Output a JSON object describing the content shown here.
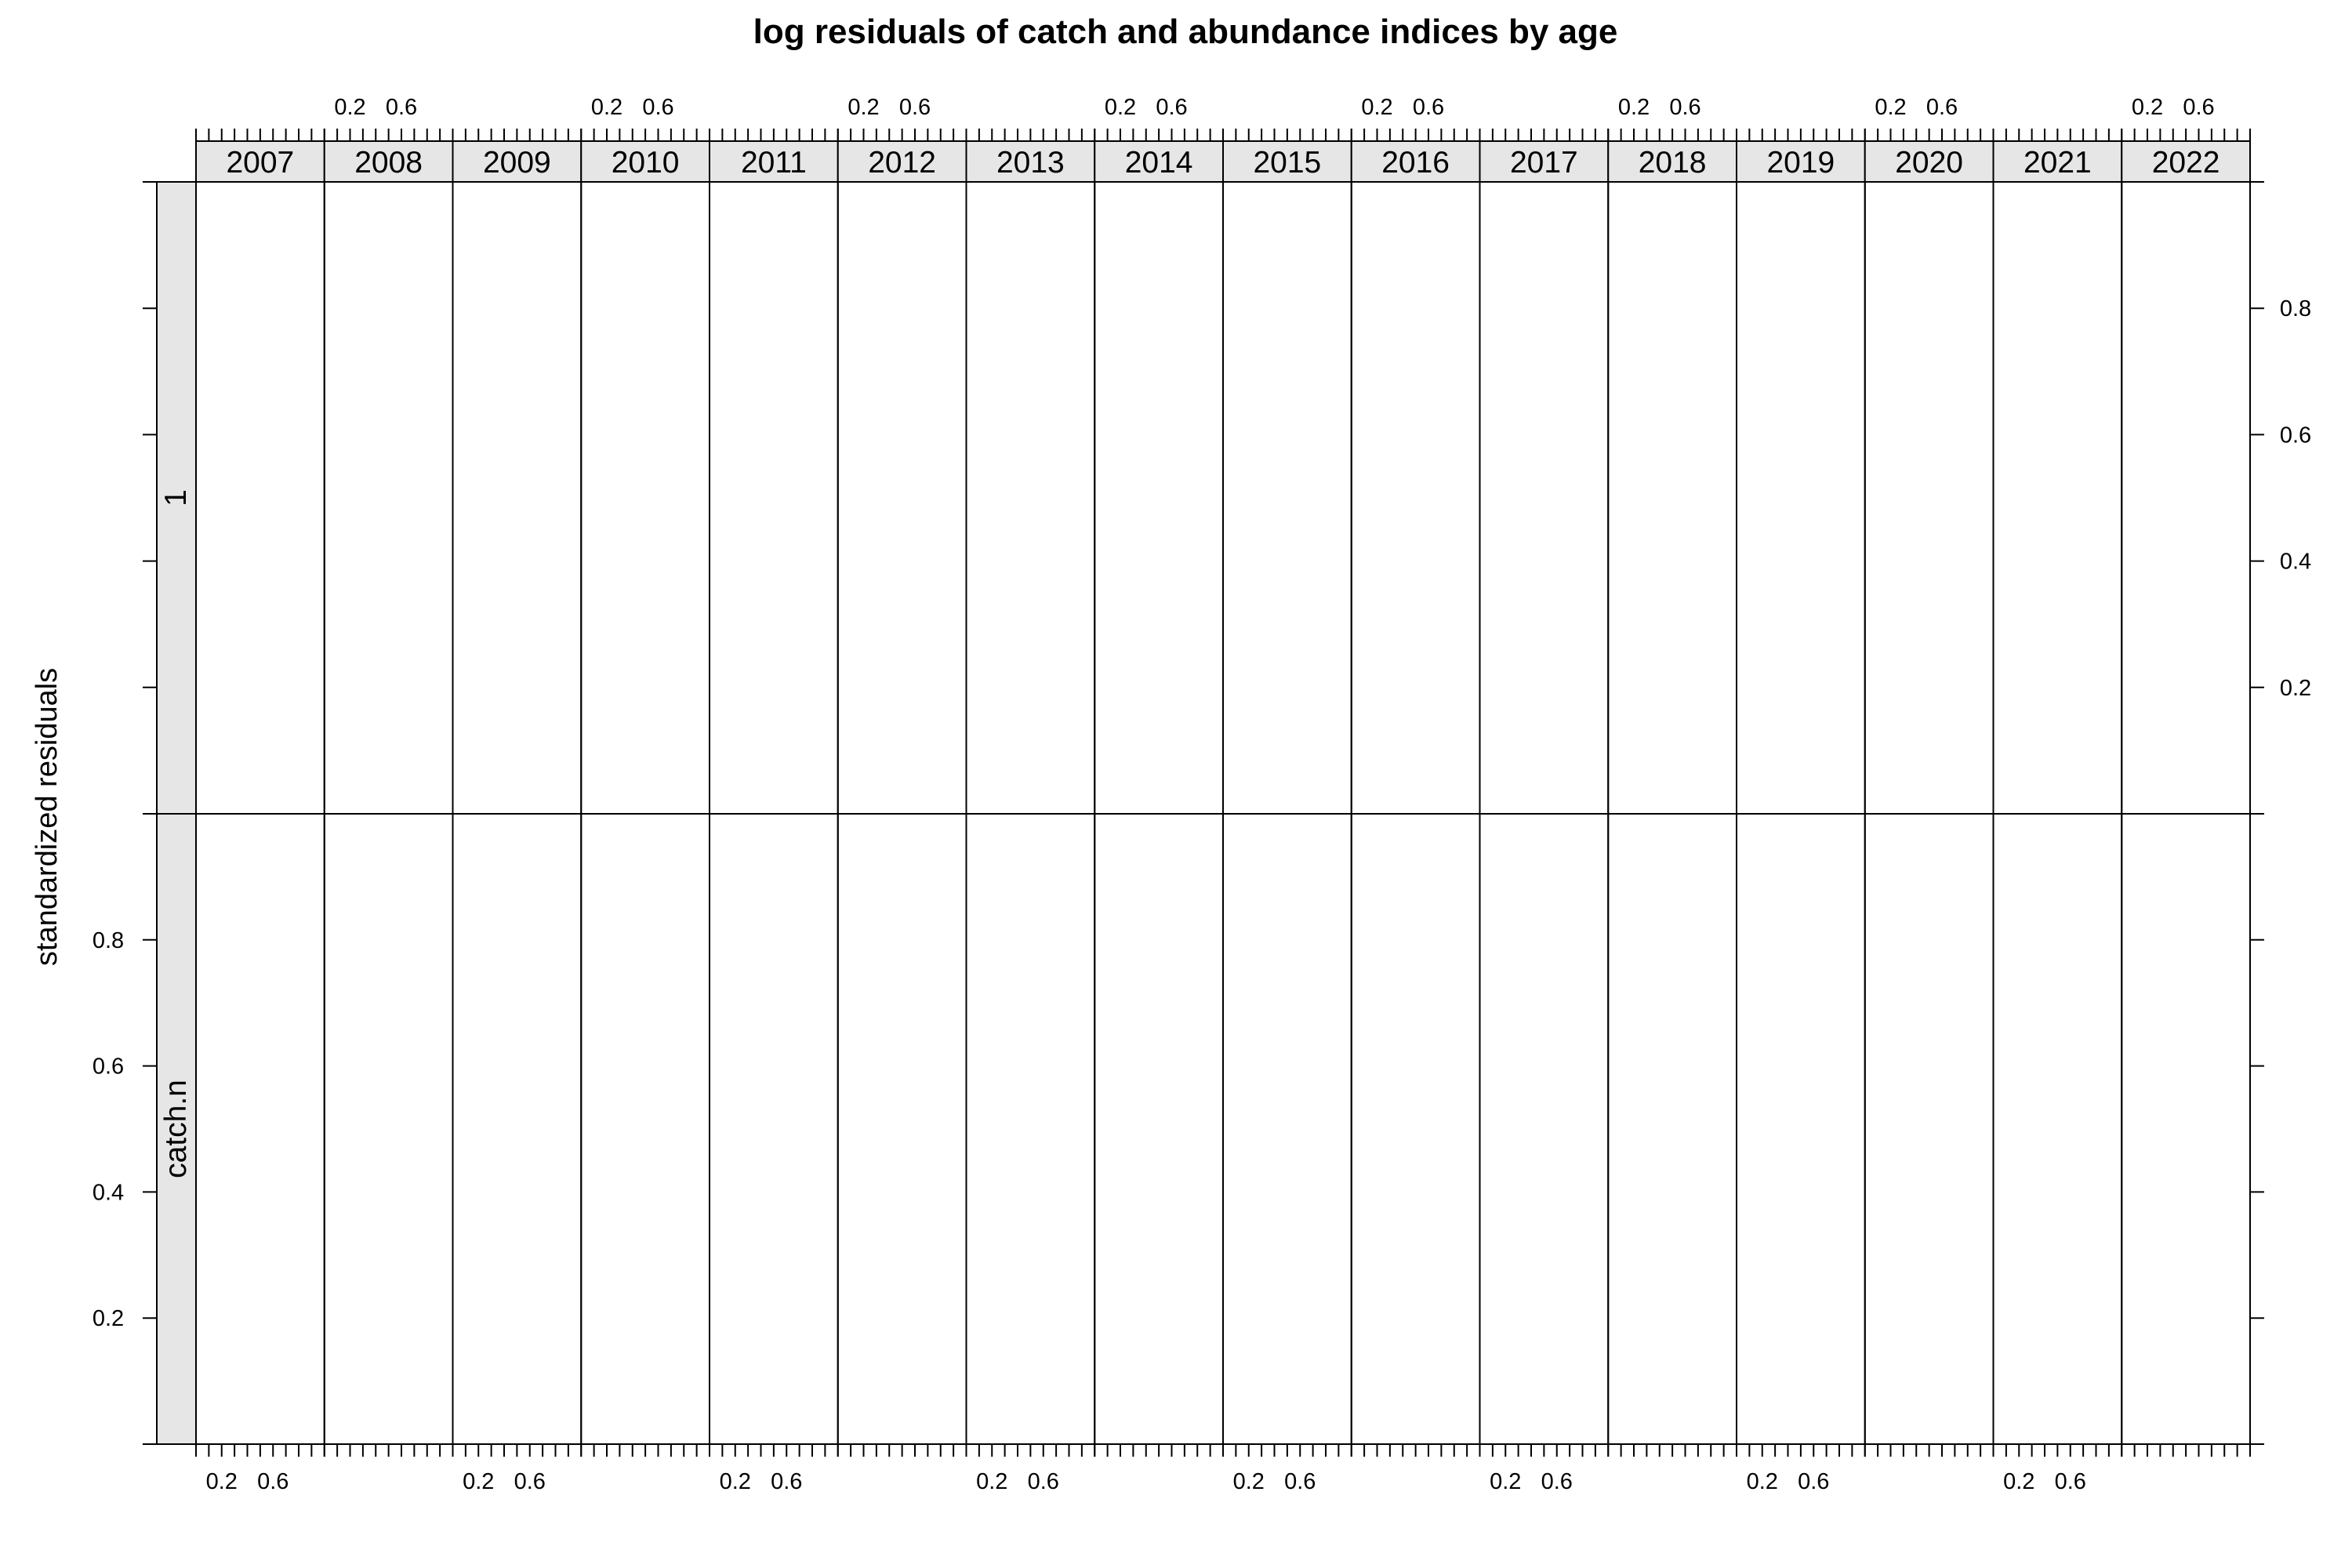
{
  "chart_data": {
    "type": "scatter",
    "title": "log residuals of catch and abundance indices by age",
    "ylabel": "standardized residuals",
    "xlabel": "",
    "years": [
      "2007",
      "2008",
      "2009",
      "2010",
      "2011",
      "2012",
      "2013",
      "2014",
      "2015",
      "2016",
      "2017",
      "2018",
      "2019",
      "2020",
      "2021",
      "2022"
    ],
    "rows": [
      "1",
      "catch.n"
    ],
    "x_tick_labels": [
      "0.2",
      "0.6"
    ],
    "y_tick_labels": [
      "0.2",
      "0.4",
      "0.6",
      "0.8"
    ],
    "xlim": [
      0,
      1
    ],
    "ylim": [
      0,
      1
    ],
    "series": [],
    "grid": false,
    "colors": {
      "strip_background": "#e6e6e6",
      "line": "#000000",
      "background": "#ffffff"
    }
  }
}
